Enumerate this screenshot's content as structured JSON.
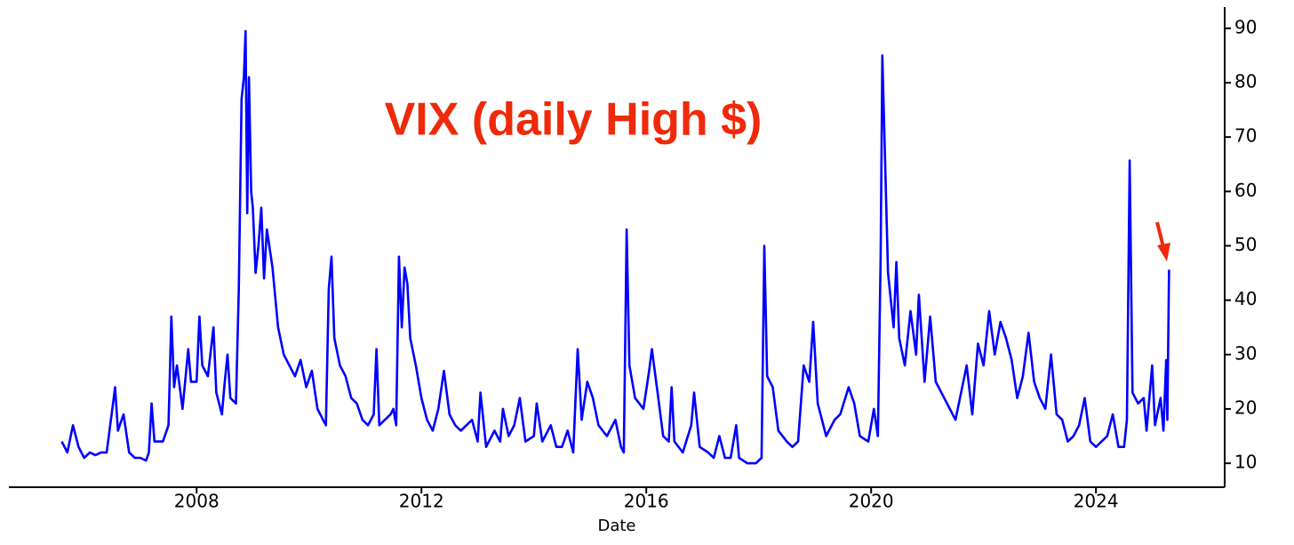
{
  "chart_data": {
    "type": "line",
    "title": "VIX (daily High $)",
    "xlabel": "Date",
    "color": "#0000ff",
    "xlim": [
      2004.66,
      2026.29
    ],
    "ylim": [
      5.6,
      93.9
    ],
    "xticks": [
      2008,
      2012,
      2016,
      2020,
      2024
    ],
    "yticks": [
      10,
      20,
      30,
      40,
      50,
      60,
      70,
      80,
      90
    ],
    "x": [
      2005.6,
      2005.7,
      2005.8,
      2005.9,
      2006.0,
      2006.1,
      2006.2,
      2006.3,
      2006.4,
      2006.5,
      2006.55,
      2006.6,
      2006.7,
      2006.8,
      2006.9,
      2007.0,
      2007.1,
      2007.15,
      2007.2,
      2007.25,
      2007.4,
      2007.5,
      2007.55,
      2007.6,
      2007.65,
      2007.75,
      2007.85,
      2007.9,
      2008.0,
      2008.05,
      2008.1,
      2008.2,
      2008.3,
      2008.35,
      2008.45,
      2008.5,
      2008.55,
      2008.6,
      2008.7,
      2008.75,
      2008.8,
      2008.84,
      2008.87,
      2008.9,
      2008.93,
      2008.97,
      2009.0,
      2009.05,
      2009.1,
      2009.15,
      2009.2,
      2009.25,
      2009.35,
      2009.45,
      2009.55,
      2009.65,
      2009.75,
      2009.85,
      2009.95,
      2010.05,
      2010.15,
      2010.25,
      2010.3,
      2010.35,
      2010.4,
      2010.45,
      2010.55,
      2010.65,
      2010.75,
      2010.85,
      2010.95,
      2011.05,
      2011.15,
      2011.2,
      2011.25,
      2011.35,
      2011.45,
      2011.5,
      2011.55,
      2011.6,
      2011.65,
      2011.7,
      2011.75,
      2011.8,
      2011.9,
      2012.0,
      2012.1,
      2012.2,
      2012.3,
      2012.4,
      2012.5,
      2012.6,
      2012.7,
      2012.8,
      2012.9,
      2013.0,
      2013.05,
      2013.15,
      2013.3,
      2013.4,
      2013.45,
      2013.55,
      2013.65,
      2013.75,
      2013.85,
      2014.0,
      2014.05,
      2014.15,
      2014.3,
      2014.4,
      2014.5,
      2014.6,
      2014.7,
      2014.78,
      2014.85,
      2014.95,
      2015.05,
      2015.15,
      2015.3,
      2015.45,
      2015.55,
      2015.6,
      2015.65,
      2015.7,
      2015.8,
      2015.95,
      2016.05,
      2016.1,
      2016.2,
      2016.3,
      2016.4,
      2016.45,
      2016.5,
      2016.65,
      2016.8,
      2016.85,
      2016.95,
      2017.1,
      2017.2,
      2017.3,
      2017.4,
      2017.5,
      2017.6,
      2017.65,
      2017.8,
      2017.95,
      2018.05,
      2018.1,
      2018.15,
      2018.25,
      2018.35,
      2018.5,
      2018.6,
      2018.7,
      2018.8,
      2018.9,
      2018.97,
      2019.05,
      2019.2,
      2019.35,
      2019.45,
      2019.6,
      2019.7,
      2019.8,
      2019.95,
      2020.05,
      2020.12,
      2020.17,
      2020.2,
      2020.25,
      2020.3,
      2020.4,
      2020.45,
      2020.5,
      2020.6,
      2020.7,
      2020.8,
      2020.85,
      2020.95,
      2021.05,
      2021.15,
      2021.3,
      2021.4,
      2021.5,
      2021.6,
      2021.7,
      2021.8,
      2021.9,
      2022.0,
      2022.1,
      2022.2,
      2022.3,
      2022.4,
      2022.5,
      2022.6,
      2022.7,
      2022.8,
      2022.9,
      2023.0,
      2023.1,
      2023.2,
      2023.3,
      2023.4,
      2023.5,
      2023.6,
      2023.7,
      2023.8,
      2023.9,
      2024.0,
      2024.1,
      2024.2,
      2024.3,
      2024.4,
      2024.5,
      2024.55,
      2024.6,
      2024.65,
      2024.75,
      2024.85,
      2024.9,
      2025.0,
      2025.05,
      2025.15,
      2025.2,
      2025.25,
      2025.27,
      2025.3
    ],
    "values": [
      14,
      12,
      17,
      13,
      11,
      12,
      11.5,
      12,
      12,
      20,
      24,
      16,
      19,
      12,
      11,
      11,
      10.5,
      12,
      21,
      14,
      14,
      17,
      37,
      24,
      28,
      20,
      31,
      25,
      25,
      37,
      28,
      26,
      35,
      23,
      19,
      25,
      30,
      22,
      21,
      42,
      77,
      81,
      89.5,
      56,
      81,
      60,
      57,
      45,
      50,
      57,
      44,
      53,
      46,
      35,
      30,
      28,
      26,
      29,
      24,
      27,
      20,
      18,
      17,
      42,
      48,
      33,
      28,
      26,
      22,
      21,
      18,
      17,
      19,
      31,
      17,
      18,
      19,
      20,
      17,
      48,
      35,
      46,
      43,
      33,
      28,
      22,
      18,
      16,
      20,
      27,
      19,
      17,
      16,
      17,
      18,
      14,
      23,
      13,
      16,
      14,
      20,
      15,
      17,
      22,
      14,
      15,
      21,
      14,
      17,
      13,
      13,
      16,
      12,
      31,
      18,
      25,
      22,
      17,
      15,
      18,
      13,
      12,
      53,
      28,
      22,
      20,
      27,
      31,
      23,
      15,
      14,
      24,
      14,
      12,
      17,
      23,
      13,
      12,
      11,
      15,
      11,
      11,
      17,
      11,
      10,
      10,
      11,
      50,
      26,
      24,
      16,
      14,
      13,
      14,
      28,
      25,
      36,
      21,
      15,
      18,
      19,
      24,
      21,
      15,
      14,
      20,
      15,
      48,
      85,
      65,
      45,
      35,
      47,
      33,
      28,
      38,
      30,
      41,
      25,
      37,
      25,
      22,
      20,
      18,
      23,
      28,
      19,
      32,
      28,
      38,
      30,
      36,
      33,
      29,
      22,
      26,
      34,
      25,
      22,
      20,
      30,
      19,
      18,
      14,
      15,
      17,
      22,
      14,
      13,
      14,
      15,
      19,
      13,
      13,
      18,
      65.7,
      23,
      21,
      22,
      16,
      28,
      17,
      22,
      16,
      29,
      18,
      45.6
    ]
  }
}
